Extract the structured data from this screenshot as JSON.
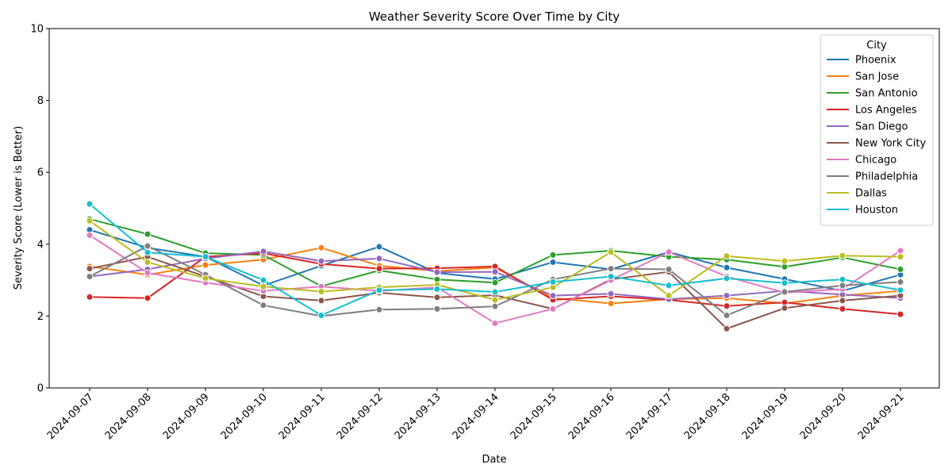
{
  "chart_data": {
    "type": "line",
    "title": "Weather Severity Score Over Time by City",
    "xlabel": "Date",
    "ylabel": "Severity Score (Lower is Better)",
    "ylim": [
      0,
      10
    ],
    "yticks": [
      "0",
      "2",
      "4",
      "6",
      "8",
      "10"
    ],
    "x": [
      "2024-09-07",
      "2024-09-08",
      "2024-09-09",
      "2024-09-10",
      "2024-09-11",
      "2024-09-12",
      "2024-09-13",
      "2024-09-14",
      "2024-09-15",
      "2024-09-16",
      "2024-09-17",
      "2024-09-18",
      "2024-09-19",
      "2024-09-20",
      "2024-09-21"
    ],
    "grid": false,
    "legend": {
      "title": "City",
      "placement": "top-right"
    },
    "series": [
      {
        "name": "Phoenix",
        "color": "#1f77b4",
        "values": [
          4.4,
          3.9,
          3.65,
          2.85,
          3.4,
          3.93,
          3.2,
          3.03,
          3.5,
          3.3,
          3.78,
          3.35,
          3.03,
          2.7,
          3.15
        ]
      },
      {
        "name": "San Jose",
        "color": "#ff7f0e",
        "values": [
          3.38,
          3.15,
          3.42,
          3.57,
          3.9,
          3.4,
          3.25,
          3.35,
          2.5,
          2.35,
          2.47,
          2.5,
          2.35,
          2.57,
          2.7
        ]
      },
      {
        "name": "San Antonio",
        "color": "#2ca02c",
        "values": [
          4.7,
          4.28,
          3.75,
          3.7,
          2.83,
          3.27,
          3.02,
          2.93,
          3.7,
          3.82,
          3.65,
          3.57,
          3.37,
          3.63,
          3.3
        ]
      },
      {
        "name": "Los Angeles",
        "color": "#d62728",
        "values": [
          2.53,
          2.5,
          3.65,
          3.75,
          3.45,
          3.32,
          3.33,
          3.38,
          2.45,
          2.55,
          2.45,
          2.28,
          2.38,
          2.2,
          2.05
        ]
      },
      {
        "name": "San Diego",
        "color": "#9467bd",
        "values": [
          3.1,
          3.3,
          3.6,
          3.8,
          3.53,
          3.6,
          3.22,
          3.23,
          2.57,
          2.62,
          2.47,
          2.57,
          2.7,
          2.6,
          2.5
        ]
      },
      {
        "name": "New York City",
        "color": "#8c564b",
        "values": [
          3.32,
          3.65,
          3.1,
          2.55,
          2.43,
          2.65,
          2.52,
          2.58,
          2.2,
          3.02,
          3.23,
          1.65,
          2.22,
          2.43,
          2.57
        ]
      },
      {
        "name": "Chicago",
        "color": "#e377c2",
        "values": [
          4.25,
          3.2,
          2.93,
          2.7,
          2.82,
          2.7,
          2.8,
          1.8,
          2.2,
          3.0,
          3.78,
          3.1,
          2.65,
          2.75,
          3.82
        ]
      },
      {
        "name": "Philadelphia",
        "color": "#7f7f7f",
        "values": [
          3.1,
          3.95,
          3.15,
          2.3,
          2.0,
          2.18,
          2.2,
          2.27,
          3.02,
          3.32,
          3.3,
          2.02,
          2.67,
          2.85,
          2.95
        ]
      },
      {
        "name": "Dallas",
        "color": "#bcbd22",
        "values": [
          4.65,
          3.5,
          3.05,
          2.82,
          2.68,
          2.8,
          2.87,
          2.45,
          2.8,
          3.78,
          2.57,
          3.67,
          3.53,
          3.68,
          3.65
        ]
      },
      {
        "name": "Houston",
        "color": "#17becf",
        "values": [
          5.12,
          3.77,
          3.65,
          3.0,
          2.02,
          2.72,
          2.75,
          2.67,
          2.95,
          3.1,
          2.85,
          3.05,
          2.92,
          3.02,
          2.72
        ]
      }
    ]
  }
}
